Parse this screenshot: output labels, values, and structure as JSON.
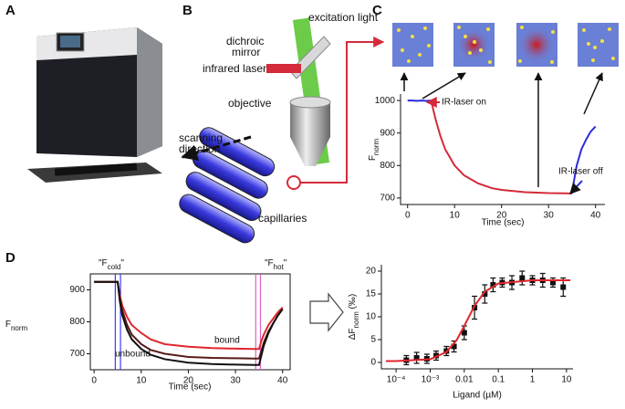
{
  "panel_labels": [
    "A",
    "B",
    "C",
    "D"
  ],
  "diagram": {
    "excitation": "excitation light",
    "dichroic": [
      "dichroic",
      "mirror"
    ],
    "infrared": "infrared laser",
    "objective": "objective",
    "scanning": [
      "scanning",
      "direction"
    ],
    "capillaries": "capillaries"
  },
  "chart_data": [
    {
      "type": "line",
      "xlabel": "Time (sec)",
      "ylabel": "F",
      "ylabel_sub": "norm",
      "ylabel_rotate": true,
      "xlim": [
        -1.5,
        42
      ],
      "ylim": [
        680,
        1020
      ],
      "xticks": [
        0,
        10,
        20,
        30,
        40
      ],
      "yticks": [
        700,
        800,
        900,
        1000
      ],
      "frame": false,
      "series": [
        {
          "color": "#2a2adf",
          "style": "line",
          "x": [
            0,
            1,
            2,
            3,
            4,
            5
          ],
          "values": [
            1000,
            1000,
            999,
            1000,
            999,
            1000
          ]
        },
        {
          "color": "#d42a3a",
          "style": "line",
          "x": [
            5,
            6,
            7,
            8,
            10,
            12,
            15,
            18,
            20,
            25,
            30,
            35
          ],
          "values": [
            1000,
            940,
            890,
            850,
            800,
            770,
            745,
            730,
            725,
            718,
            715,
            714
          ]
        },
        {
          "color": "#2a2adf",
          "style": "line",
          "x": [
            35,
            35.5,
            36,
            37,
            38,
            39,
            40
          ],
          "values": [
            714,
            760,
            800,
            850,
            880,
            905,
            920
          ]
        }
      ],
      "annotations": [
        "IR-laser on",
        "IR-laser off"
      ]
    },
    {
      "type": "line",
      "xlabel": "Time (sec)",
      "ylabel": "F",
      "ylabel_sub": "norm",
      "ylabel_rotate": false,
      "xlim": [
        -0.8,
        41.6
      ],
      "ylim": [
        650,
        950
      ],
      "xticks": [
        0,
        10,
        20,
        30,
        40
      ],
      "yticks": [
        700,
        800,
        900
      ],
      "frame": true,
      "series": [
        {
          "name": "bound",
          "color": "#e0262e",
          "style": "line",
          "x": [
            0,
            2,
            4,
            5,
            5.5,
            6,
            7,
            8,
            10,
            12,
            15,
            20,
            25,
            30,
            34,
            35,
            35.5,
            36,
            37,
            38,
            39,
            40
          ],
          "values": [
            925,
            925,
            925,
            925,
            880,
            850,
            815,
            790,
            765,
            745,
            730,
            722,
            718,
            716,
            715,
            715,
            740,
            760,
            790,
            810,
            830,
            845
          ]
        },
        {
          "color": "#5a1a1a",
          "style": "line",
          "x": [
            0,
            2,
            4,
            5,
            5.5,
            6,
            7,
            8,
            10,
            12,
            15,
            20,
            25,
            30,
            34,
            35,
            35.5,
            36,
            37,
            38,
            39,
            40
          ],
          "values": [
            925,
            925,
            925,
            925,
            870,
            835,
            790,
            760,
            730,
            712,
            700,
            690,
            687,
            686,
            685,
            685,
            710,
            735,
            770,
            795,
            820,
            840
          ]
        },
        {
          "name": "unbound",
          "color": "#111111",
          "style": "line",
          "x": [
            0,
            2,
            4,
            5,
            5.5,
            6,
            7,
            8,
            10,
            12,
            15,
            20,
            25,
            30,
            34,
            35,
            35.5,
            36,
            37,
            38,
            39,
            40
          ],
          "values": [
            925,
            925,
            925,
            925,
            860,
            820,
            775,
            745,
            715,
            697,
            683,
            672,
            668,
            666,
            665,
            665,
            695,
            725,
            765,
            795,
            820,
            840
          ]
        }
      ],
      "vlines": [
        {
          "x": 4.5,
          "color": "#3a3aff"
        },
        {
          "x": 5.6,
          "color": "#3a3aff"
        },
        {
          "x": 34.3,
          "color": "#e060c0"
        },
        {
          "x": 35.3,
          "color": "#e060c0"
        }
      ],
      "markers": [
        {
          "main": "\"F",
          "sub": "cold",
          "close": "\"",
          "color": "#3a3aff"
        },
        {
          "main": "\"F",
          "sub": "hot",
          "close": "\"",
          "color": "#e0262e"
        }
      ]
    },
    {
      "type": "scatter",
      "xlabel": "Ligand (µM)",
      "ylabel": "ΔF",
      "ylabel_sub": "norm",
      "ylabel_end": " (‰)",
      "ylabel_rotate": true,
      "xlog": true,
      "xlim": [
        3.7e-05,
        15.5
      ],
      "ylim": [
        -1.4,
        21.4
      ],
      "frame": false,
      "xticks": [
        {
          "value": 0.0001,
          "label": "10⁻⁴"
        },
        {
          "value": 0.001,
          "label": "10⁻³"
        },
        0.01,
        0.1,
        1,
        10
      ],
      "yticks": [
        0,
        5,
        10,
        15,
        20
      ],
      "series": [
        {
          "color": "#111111",
          "style": "points",
          "x": [
            0.0002,
            0.0004,
            0.0008,
            0.0015,
            0.003,
            0.005,
            0.01,
            0.02,
            0.04,
            0.07,
            0.13,
            0.25,
            0.5,
            1,
            2,
            4,
            8
          ],
          "values": [
            0.5,
            1,
            0.8,
            1.5,
            2.5,
            3.5,
            6.5,
            12,
            15,
            17,
            17.5,
            17.5,
            18.5,
            18,
            18,
            17.5,
            16.5
          ],
          "errors": [
            1,
            1.2,
            1,
            1,
            1,
            1.2,
            1.5,
            2.5,
            2,
            1.5,
            1,
            1.5,
            1.5,
            1,
            1.5,
            1,
            2
          ]
        },
        {
          "color": "#e0262e",
          "style": "line",
          "x": [
            5e-05,
            0.0001,
            0.001,
            0.003,
            0.006,
            0.01,
            0.02,
            0.04,
            0.1,
            1,
            13
          ],
          "values": [
            0.3,
            0.3,
            0.7,
            2.3,
            4.9,
            8,
            12.4,
            15.5,
            17.3,
            18,
            18
          ]
        }
      ]
    }
  ]
}
